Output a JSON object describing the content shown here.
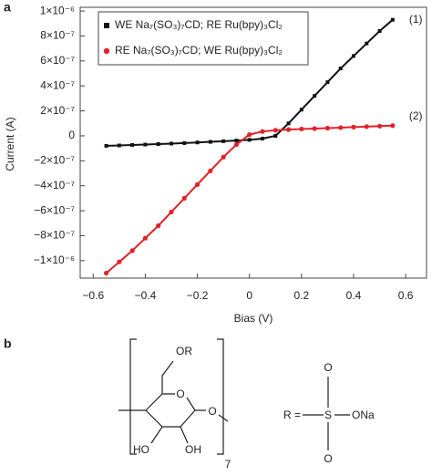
{
  "chart_data": {
    "type": "line",
    "panel_label": "a",
    "xlabel": "Bias (V)",
    "ylabel": "Current (A)",
    "x": [
      -0.55,
      -0.5,
      -0.45,
      -0.4,
      -0.35,
      -0.3,
      -0.25,
      -0.2,
      -0.15,
      -0.1,
      -0.05,
      0,
      0.05,
      0.1,
      0.15,
      0.2,
      0.25,
      0.3,
      0.35,
      0.4,
      0.45,
      0.5,
      0.55
    ],
    "series": [
      {
        "name": "WE Na₇(SO₃)₇CD; RE Ru(bpy)₃Cl₂",
        "color": "#111111",
        "marker": "square",
        "values": [
          -8e-08,
          -7.7e-08,
          -7.3e-08,
          -7e-08,
          -6.6e-08,
          -6.2e-08,
          -5.8e-08,
          -5.3e-08,
          -4.8e-08,
          -4.3e-08,
          -3.8e-08,
          -3.2e-08,
          -2.2e-08,
          0,
          1e-07,
          2.1e-07,
          3.2e-07,
          4.3e-07,
          5.4e-07,
          6.4e-07,
          7.4e-07,
          8.4e-07,
          9.3e-07
        ]
      },
      {
        "name": "RE Na₇(SO₃)₇CD; WE Ru(bpy)₃Cl₂",
        "color": "#e4202a",
        "marker": "circle",
        "values": [
          -1.1e-06,
          -1.01e-06,
          -9.2e-07,
          -8.2e-07,
          -7.2e-07,
          -6.1e-07,
          -5e-07,
          -3.9e-07,
          -2.8e-07,
          -1.7e-07,
          -7e-08,
          1e-08,
          3.5e-08,
          4.5e-08,
          5e-08,
          5.5e-08,
          5.8e-08,
          6.2e-08,
          6.6e-08,
          7e-08,
          7.4e-08,
          7.8e-08,
          8.2e-08
        ]
      }
    ],
    "annotations": [
      "(1)",
      "(2)"
    ],
    "legend": "upper left",
    "xlim": [
      -0.65,
      0.68
    ],
    "ylim": [
      -1.14e-06,
      1.03e-06
    ],
    "xticks": [
      {
        "value": -0.6,
        "label": "−0.6"
      },
      {
        "value": -0.4,
        "label": "−0.4"
      },
      {
        "value": -0.2,
        "label": "−0.2"
      },
      0,
      0.2,
      0.4,
      0.6
    ],
    "yticks": [
      {
        "value": -1e-06,
        "label": "−1×10⁻⁶"
      },
      {
        "value": -8e-07,
        "label": "−8×10⁻⁷"
      },
      {
        "value": -6e-07,
        "label": "−6×10⁻⁷"
      },
      {
        "value": -4e-07,
        "label": "−4×10⁻⁷"
      },
      {
        "value": -2e-07,
        "label": "−2×10⁻⁷"
      },
      0,
      {
        "value": 2e-07,
        "label": "2×10⁻⁷"
      },
      {
        "value": 4e-07,
        "label": "4×10⁻⁷"
      },
      {
        "value": 6e-07,
        "label": "6×10⁻⁷"
      },
      {
        "value": 8e-07,
        "label": "8×10⁻⁷"
      },
      {
        "value": 1e-06,
        "label": "1×10⁻⁶"
      }
    ]
  },
  "structure": {
    "panel_label": "b",
    "labels": [
      "OR",
      "O",
      "O",
      "HO",
      "OH",
      "7",
      "R =",
      "S",
      "O",
      "O",
      "ONa"
    ]
  }
}
